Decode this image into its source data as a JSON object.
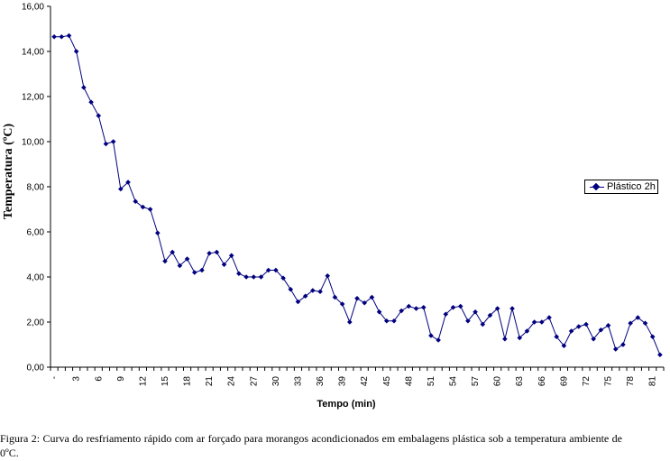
{
  "chart_data": {
    "type": "line",
    "xlabel": "Tempo (min)",
    "ylabel": "Temperatura (ºC)",
    "ylim": [
      0,
      16
    ],
    "yticks": [
      "0,00",
      "2,00",
      "4,00",
      "6,00",
      "8,00",
      "10,00",
      "12,00",
      "14,00",
      "16,00"
    ],
    "xticks": [
      "-",
      "3",
      "6",
      "9",
      "12",
      "15",
      "18",
      "21",
      "24",
      "27",
      "30",
      "33",
      "36",
      "39",
      "42",
      "45",
      "48",
      "51",
      "54",
      "57",
      "60",
      "63",
      "66",
      "69",
      "72",
      "75",
      "78",
      "81"
    ],
    "grid": false,
    "legend_position": "right",
    "series": [
      {
        "name": "Plástico 2h",
        "color": "#00007f",
        "x": [
          0,
          1,
          2,
          3,
          4,
          5,
          6,
          7,
          8,
          9,
          10,
          11,
          12,
          13,
          14,
          15,
          16,
          17,
          18,
          19,
          20,
          21,
          22,
          23,
          24,
          25,
          26,
          27,
          28,
          29,
          30,
          31,
          32,
          33,
          34,
          35,
          36,
          37,
          38,
          39,
          40,
          41,
          42,
          43,
          44,
          45,
          46,
          47,
          48,
          49,
          50,
          51,
          52,
          53,
          54,
          55,
          56,
          57,
          58,
          59,
          60,
          61,
          62,
          63,
          64,
          65,
          66,
          67,
          68,
          69,
          70,
          71,
          72,
          73,
          74,
          75,
          76,
          77,
          78,
          79,
          80,
          81,
          82
        ],
        "values": [
          14.65,
          14.65,
          14.7,
          14.0,
          12.4,
          11.75,
          11.15,
          9.9,
          10.0,
          7.9,
          8.2,
          7.35,
          7.1,
          7.0,
          5.95,
          4.7,
          5.1,
          4.5,
          4.8,
          4.2,
          4.3,
          5.05,
          5.1,
          4.55,
          4.95,
          4.15,
          4.0,
          4.0,
          4.0,
          4.3,
          4.3,
          3.95,
          3.45,
          2.9,
          3.15,
          3.4,
          3.35,
          4.05,
          3.1,
          2.8,
          2.0,
          3.05,
          2.85,
          3.1,
          2.45,
          2.05,
          2.05,
          2.5,
          2.7,
          2.6,
          2.65,
          1.4,
          1.2,
          2.35,
          2.65,
          2.7,
          2.05,
          2.45,
          1.9,
          2.3,
          2.6,
          1.25,
          2.6,
          1.3,
          1.6,
          2.0,
          2.0,
          2.2,
          1.35,
          0.95,
          1.6,
          1.8,
          1.9,
          1.25,
          1.65,
          1.85,
          0.8,
          1.0,
          1.95,
          2.2,
          1.95,
          1.35,
          0.55
        ]
      }
    ]
  },
  "legend": {
    "label": "Plástico 2h"
  },
  "caption": "Figura 2: Curva do resfriamento rápido com ar forçado para morangos acondicionados em embalagens plástica sob a temperatura ambiente de 0ºC."
}
